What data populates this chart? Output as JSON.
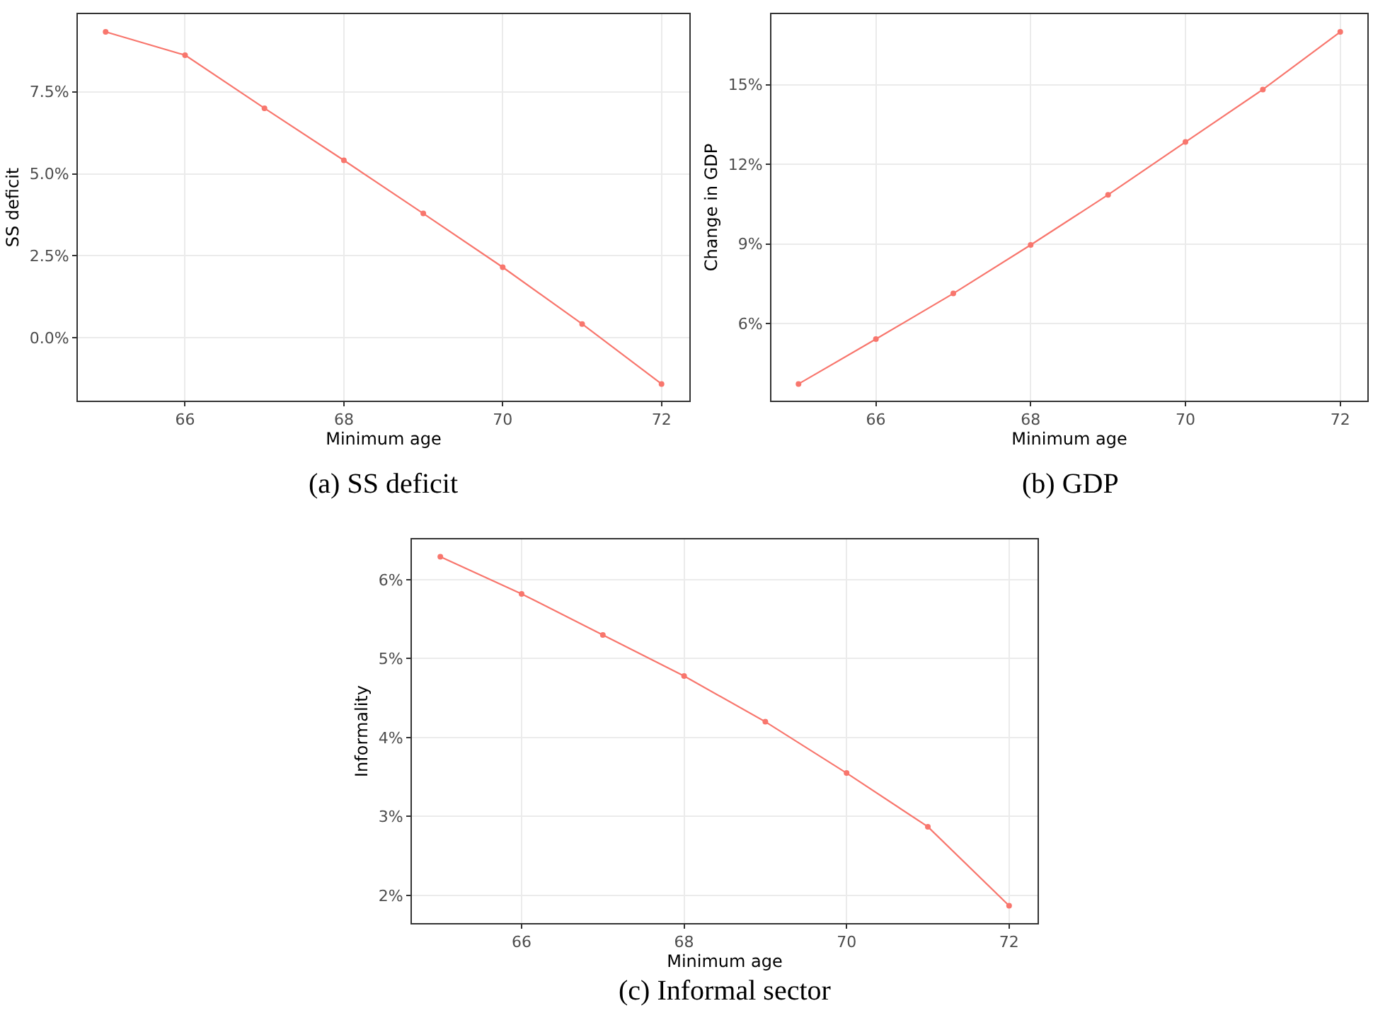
{
  "chart_data": [
    {
      "type": "line",
      "title": "(a) SS deficit",
      "xlabel": "Minimum age",
      "ylabel": "SS deficit",
      "marker": "circle",
      "line_style": "solid",
      "grid": true,
      "x": [
        65,
        66,
        67,
        68,
        69,
        70,
        71,
        72
      ],
      "series": [
        {
          "color": "#f8766d",
          "values": [
            9.33,
            8.62,
            7.0,
            5.41,
            3.79,
            2.15,
            0.42,
            -1.41
          ]
        }
      ],
      "xlim": [
        64.65,
        72.35
      ],
      "xticks": [
        66,
        68,
        70,
        72
      ],
      "ylim": [
        -1.92,
        9.87
      ],
      "yticks": [
        {
          "value": 0,
          "label": "0.0%"
        },
        {
          "value": 2.5,
          "label": "2.5%"
        },
        {
          "value": 5,
          "label": "5.0%"
        },
        {
          "value": 7.5,
          "label": "7.5%"
        }
      ]
    },
    {
      "type": "line",
      "title": "(b) GDP",
      "xlabel": "Minimum age",
      "ylabel": "Change in GDP",
      "marker": "circle",
      "line_style": "solid",
      "grid": true,
      "x": [
        65,
        66,
        67,
        68,
        69,
        70,
        71,
        72
      ],
      "series": [
        {
          "color": "#f8766d",
          "values": [
            3.72,
            5.41,
            7.13,
            8.96,
            10.85,
            12.84,
            14.82,
            16.99
          ]
        }
      ],
      "xlim": [
        64.65,
        72.35
      ],
      "xticks": [
        66,
        68,
        70,
        72
      ],
      "ylim": [
        3.09,
        17.66
      ],
      "yticks": [
        {
          "value": 6,
          "label": "6%"
        },
        {
          "value": 9,
          "label": "9%"
        },
        {
          "value": 12,
          "label": "12%"
        },
        {
          "value": 15,
          "label": "15%"
        }
      ]
    },
    {
      "type": "line",
      "title": "(c) Informal sector",
      "xlabel": "Minimum age",
      "ylabel": "Informality",
      "marker": "circle",
      "line_style": "solid",
      "grid": true,
      "x": [
        65,
        66,
        67,
        68,
        69,
        70,
        71,
        72
      ],
      "series": [
        {
          "color": "#f8766d",
          "values": [
            6.29,
            5.82,
            5.3,
            4.78,
            4.2,
            3.55,
            2.87,
            1.87
          ]
        }
      ],
      "xlim": [
        64.65,
        72.35
      ],
      "xticks": [
        66,
        68,
        70,
        72
      ],
      "ylim": [
        1.65,
        6.51
      ],
      "yticks": [
        {
          "value": 2,
          "label": "2%"
        },
        {
          "value": 3,
          "label": "3%"
        },
        {
          "value": 4,
          "label": "4%"
        },
        {
          "value": 5,
          "label": "5%"
        },
        {
          "value": 6,
          "label": "6%"
        }
      ]
    }
  ]
}
